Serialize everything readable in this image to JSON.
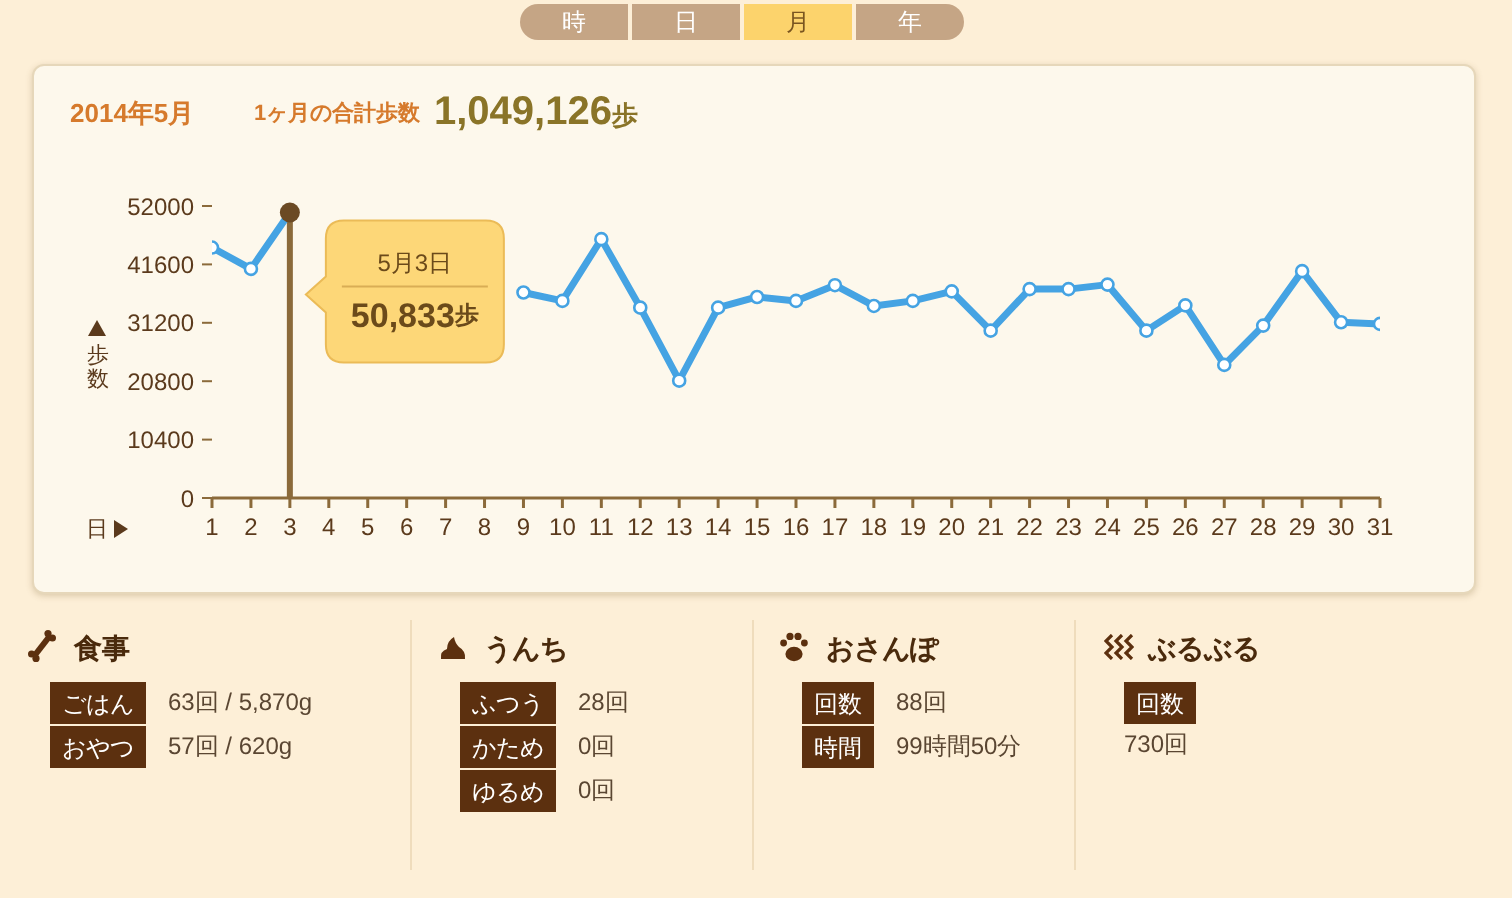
{
  "chart_data": [
    {
      "type": "other",
      "categories": [
        "時",
        "日",
        "月",
        "年"
      ],
      "colors": [
        "#c5a585",
        "#c5a585",
        "#fcd36c",
        "#c5a585"
      ]
    },
    {
      "type": "line",
      "title": "2014年5月",
      "subtitle": "1ヶ月の合計歩数",
      "xlabel": "日",
      "ylabel": "歩数",
      "annotations": [
        "1,049,126歩",
        "5月3日",
        "50,833歩"
      ],
      "x": [
        1,
        2,
        3,
        4,
        5,
        6,
        7,
        8,
        9,
        10,
        11,
        12,
        13,
        14,
        15,
        16,
        17,
        18,
        19,
        20,
        21,
        22,
        23,
        24,
        25,
        26,
        27,
        28,
        29,
        30,
        31
      ],
      "values": [
        44600,
        40800,
        50833,
        null,
        null,
        null,
        null,
        null,
        36600,
        35100,
        46100,
        33900,
        20900,
        33900,
        35800,
        35100,
        37900,
        34200,
        35100,
        36800,
        29800,
        37200,
        37200,
        38000,
        29800,
        34300,
        23700,
        30700,
        40400,
        31300,
        31000
      ],
      "color": "#45a3e3",
      "marker": "circle",
      "line_style": "solid",
      "xlim": [
        1,
        31
      ],
      "xticks": [
        1,
        2,
        3,
        4,
        5,
        6,
        7,
        8,
        9,
        10,
        11,
        12,
        13,
        14,
        15,
        16,
        17,
        18,
        19,
        20,
        21,
        22,
        23,
        24,
        25,
        26,
        27,
        28,
        29,
        30,
        31
      ],
      "ylim": [
        0,
        52000
      ],
      "yticks": [
        0,
        10400,
        20800,
        31200,
        41600,
        52000
      ],
      "ref_lines": [
        {
          "axis": "x",
          "value": 3,
          "color": "#8b6a3a"
        }
      ]
    },
    {
      "type": "other",
      "title": "食事",
      "categories": [
        "ごはん",
        "おやつ"
      ],
      "value_labels": [
        "63回 / 5,870g",
        "57回 / 620g"
      ]
    },
    {
      "type": "other",
      "title": "うんち",
      "categories": [
        "ふつう",
        "かため",
        "ゆるめ"
      ],
      "value_labels": [
        "28回",
        "0回",
        "0回"
      ]
    },
    {
      "type": "other",
      "title": "おさんぽ",
      "categories": [
        "回数",
        "時間"
      ],
      "value_labels": [
        "88回",
        "99時間50分"
      ]
    },
    {
      "type": "other",
      "title": "ぶるぶる",
      "categories": [
        "回数"
      ],
      "annotations": [
        "730回"
      ]
    }
  ]
}
